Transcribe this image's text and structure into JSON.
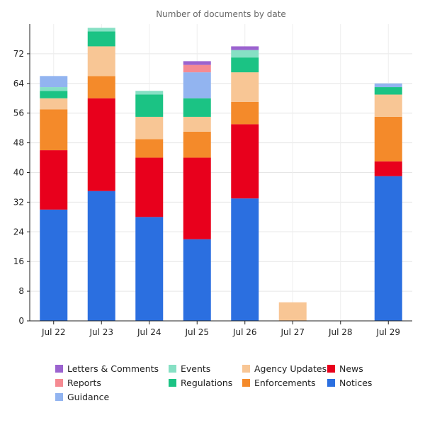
{
  "chart_data": {
    "type": "bar",
    "stacked": true,
    "title": "Number of documents by date",
    "xlabel": "",
    "ylabel": "",
    "categories": [
      "Jul 22",
      "Jul 23",
      "Jul 24",
      "Jul 25",
      "Jul 26",
      "Jul 27",
      "Jul 28",
      "Jul 29"
    ],
    "ylim": [
      0,
      80
    ],
    "yticks": [
      0,
      8,
      16,
      24,
      32,
      40,
      48,
      56,
      64,
      72
    ],
    "grid": true,
    "legend_position": "bottom",
    "series": [
      {
        "name": "Notices",
        "color": "#2b6fe0",
        "values": [
          30,
          35,
          28,
          22,
          33,
          0,
          0,
          39
        ]
      },
      {
        "name": "News",
        "color": "#e8001c",
        "values": [
          16,
          25,
          16,
          22,
          20,
          0,
          0,
          4
        ]
      },
      {
        "name": "Enforcements",
        "color": "#f48a2a",
        "values": [
          11,
          6,
          5,
          7,
          6,
          0,
          0,
          12
        ]
      },
      {
        "name": "Agency Updates",
        "color": "#f8c695",
        "values": [
          3,
          8,
          6,
          4,
          8,
          5,
          0,
          6
        ]
      },
      {
        "name": "Regulations",
        "color": "#1bc384",
        "values": [
          2,
          4,
          6,
          5,
          4,
          0,
          0,
          2
        ]
      },
      {
        "name": "Events",
        "color": "#86e0c4",
        "values": [
          1,
          1,
          1,
          0,
          2,
          0,
          0,
          0
        ]
      },
      {
        "name": "Guidance",
        "color": "#92b4f0",
        "values": [
          3,
          0,
          0,
          7,
          0,
          0,
          0,
          1
        ]
      },
      {
        "name": "Reports",
        "color": "#f58a92",
        "values": [
          0,
          0,
          0,
          2,
          0,
          0,
          0,
          0
        ]
      },
      {
        "name": "Letters & Comments",
        "color": "#9b63cf",
        "values": [
          0,
          0,
          0,
          1,
          1,
          0,
          0,
          0
        ]
      }
    ],
    "legend_order": [
      "Letters & Comments",
      "Events",
      "Agency Updates",
      "News",
      "Reports",
      "Regulations",
      "Enforcements",
      "Notices",
      "Guidance"
    ]
  }
}
